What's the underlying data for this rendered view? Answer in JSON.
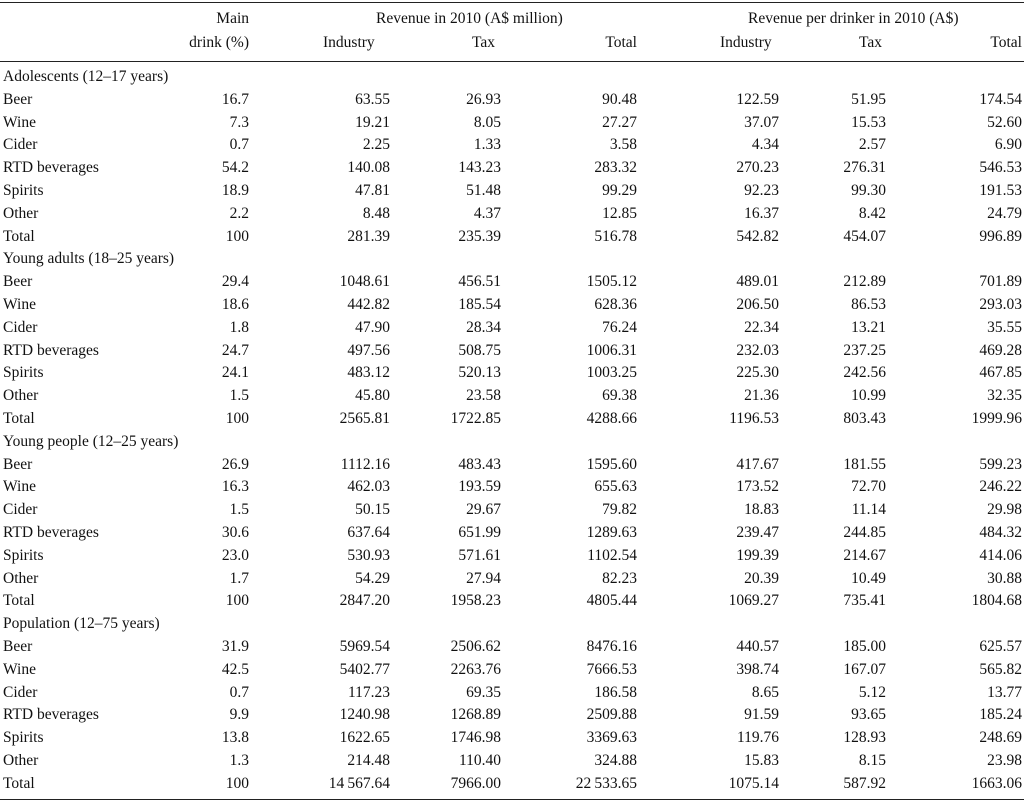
{
  "header": {
    "main_drink_line1": "Main",
    "main_drink_line2": "drink (%)",
    "revenue_group": "Revenue in 2010 (A$ million)",
    "per_drinker_group": "Revenue per drinker in 2010 (A$)",
    "industry": "Industry",
    "tax": "Tax",
    "total": "Total"
  },
  "groups": [
    {
      "title": "Adolescents (12–17 years)",
      "rows": [
        {
          "label": "Beer",
          "main_drink": "16.7",
          "industry": "63.55",
          "tax": "26.93",
          "total": "90.48",
          "pd_industry": "122.59",
          "pd_tax": "51.95",
          "pd_total": "174.54"
        },
        {
          "label": "Wine",
          "main_drink": "7.3",
          "industry": "19.21",
          "tax": "8.05",
          "total": "27.27",
          "pd_industry": "37.07",
          "pd_tax": "15.53",
          "pd_total": "52.60"
        },
        {
          "label": "Cider",
          "main_drink": "0.7",
          "industry": "2.25",
          "tax": "1.33",
          "total": "3.58",
          "pd_industry": "4.34",
          "pd_tax": "2.57",
          "pd_total": "6.90"
        },
        {
          "label": "RTD beverages",
          "main_drink": "54.2",
          "industry": "140.08",
          "tax": "143.23",
          "total": "283.32",
          "pd_industry": "270.23",
          "pd_tax": "276.31",
          "pd_total": "546.53"
        },
        {
          "label": "Spirits",
          "main_drink": "18.9",
          "industry": "47.81",
          "tax": "51.48",
          "total": "99.29",
          "pd_industry": "92.23",
          "pd_tax": "99.30",
          "pd_total": "191.53"
        },
        {
          "label": "Other",
          "main_drink": "2.2",
          "industry": "8.48",
          "tax": "4.37",
          "total": "12.85",
          "pd_industry": "16.37",
          "pd_tax": "8.42",
          "pd_total": "24.79"
        },
        {
          "label": "Total",
          "main_drink": "100",
          "industry": "281.39",
          "tax": "235.39",
          "total": "516.78",
          "pd_industry": "542.82",
          "pd_tax": "454.07",
          "pd_total": "996.89"
        }
      ]
    },
    {
      "title": "Young adults (18–25 years)",
      "rows": [
        {
          "label": "Beer",
          "main_drink": "29.4",
          "industry": "1048.61",
          "tax": "456.51",
          "total": "1505.12",
          "pd_industry": "489.01",
          "pd_tax": "212.89",
          "pd_total": "701.89"
        },
        {
          "label": "Wine",
          "main_drink": "18.6",
          "industry": "442.82",
          "tax": "185.54",
          "total": "628.36",
          "pd_industry": "206.50",
          "pd_tax": "86.53",
          "pd_total": "293.03"
        },
        {
          "label": "Cider",
          "main_drink": "1.8",
          "industry": "47.90",
          "tax": "28.34",
          "total": "76.24",
          "pd_industry": "22.34",
          "pd_tax": "13.21",
          "pd_total": "35.55"
        },
        {
          "label": "RTD beverages",
          "main_drink": "24.7",
          "industry": "497.56",
          "tax": "508.75",
          "total": "1006.31",
          "pd_industry": "232.03",
          "pd_tax": "237.25",
          "pd_total": "469.28"
        },
        {
          "label": "Spirits",
          "main_drink": "24.1",
          "industry": "483.12",
          "tax": "520.13",
          "total": "1003.25",
          "pd_industry": "225.30",
          "pd_tax": "242.56",
          "pd_total": "467.85"
        },
        {
          "label": "Other",
          "main_drink": "1.5",
          "industry": "45.80",
          "tax": "23.58",
          "total": "69.38",
          "pd_industry": "21.36",
          "pd_tax": "10.99",
          "pd_total": "32.35"
        },
        {
          "label": "Total",
          "main_drink": "100",
          "industry": "2565.81",
          "tax": "1722.85",
          "total": "4288.66",
          "pd_industry": "1196.53",
          "pd_tax": "803.43",
          "pd_total": "1999.96"
        }
      ]
    },
    {
      "title": "Young people (12–25 years)",
      "rows": [
        {
          "label": "Beer",
          "main_drink": "26.9",
          "industry": "1112.16",
          "tax": "483.43",
          "total": "1595.60",
          "pd_industry": "417.67",
          "pd_tax": "181.55",
          "pd_total": "599.23"
        },
        {
          "label": "Wine",
          "main_drink": "16.3",
          "industry": "462.03",
          "tax": "193.59",
          "total": "655.63",
          "pd_industry": "173.52",
          "pd_tax": "72.70",
          "pd_total": "246.22"
        },
        {
          "label": "Cider",
          "main_drink": "1.5",
          "industry": "50.15",
          "tax": "29.67",
          "total": "79.82",
          "pd_industry": "18.83",
          "pd_tax": "11.14",
          "pd_total": "29.98"
        },
        {
          "label": "RTD beverages",
          "main_drink": "30.6",
          "industry": "637.64",
          "tax": "651.99",
          "total": "1289.63",
          "pd_industry": "239.47",
          "pd_tax": "244.85",
          "pd_total": "484.32"
        },
        {
          "label": "Spirits",
          "main_drink": "23.0",
          "industry": "530.93",
          "tax": "571.61",
          "total": "1102.54",
          "pd_industry": "199.39",
          "pd_tax": "214.67",
          "pd_total": "414.06"
        },
        {
          "label": "Other",
          "main_drink": "1.7",
          "industry": "54.29",
          "tax": "27.94",
          "total": "82.23",
          "pd_industry": "20.39",
          "pd_tax": "10.49",
          "pd_total": "30.88"
        },
        {
          "label": "Total",
          "main_drink": "100",
          "industry": "2847.20",
          "tax": "1958.23",
          "total": "4805.44",
          "pd_industry": "1069.27",
          "pd_tax": "735.41",
          "pd_total": "1804.68"
        }
      ]
    },
    {
      "title": "Population (12–75 years)",
      "rows": [
        {
          "label": "Beer",
          "main_drink": "31.9",
          "industry": "5969.54",
          "tax": "2506.62",
          "total": "8476.16",
          "pd_industry": "440.57",
          "pd_tax": "185.00",
          "pd_total": "625.57"
        },
        {
          "label": "Wine",
          "main_drink": "42.5",
          "industry": "5402.77",
          "tax": "2263.76",
          "total": "7666.53",
          "pd_industry": "398.74",
          "pd_tax": "167.07",
          "pd_total": "565.82"
        },
        {
          "label": "Cider",
          "main_drink": "0.7",
          "industry": "117.23",
          "tax": "69.35",
          "total": "186.58",
          "pd_industry": "8.65",
          "pd_tax": "5.12",
          "pd_total": "13.77"
        },
        {
          "label": "RTD beverages",
          "main_drink": "9.9",
          "industry": "1240.98",
          "tax": "1268.89",
          "total": "2509.88",
          "pd_industry": "91.59",
          "pd_tax": "93.65",
          "pd_total": "185.24"
        },
        {
          "label": "Spirits",
          "main_drink": "13.8",
          "industry": "1622.65",
          "tax": "1746.98",
          "total": "3369.63",
          "pd_industry": "119.76",
          "pd_tax": "128.93",
          "pd_total": "248.69"
        },
        {
          "label": "Other",
          "main_drink": "1.3",
          "industry": "214.48",
          "tax": "110.40",
          "total": "324.88",
          "pd_industry": "15.83",
          "pd_tax": "8.15",
          "pd_total": "23.98"
        },
        {
          "label": "Total",
          "main_drink": "100",
          "industry": "14 567.64",
          "tax": "7966.00",
          "total": "22 533.65",
          "pd_industry": "1075.14",
          "pd_tax": "587.92",
          "pd_total": "1663.06"
        }
      ]
    }
  ]
}
